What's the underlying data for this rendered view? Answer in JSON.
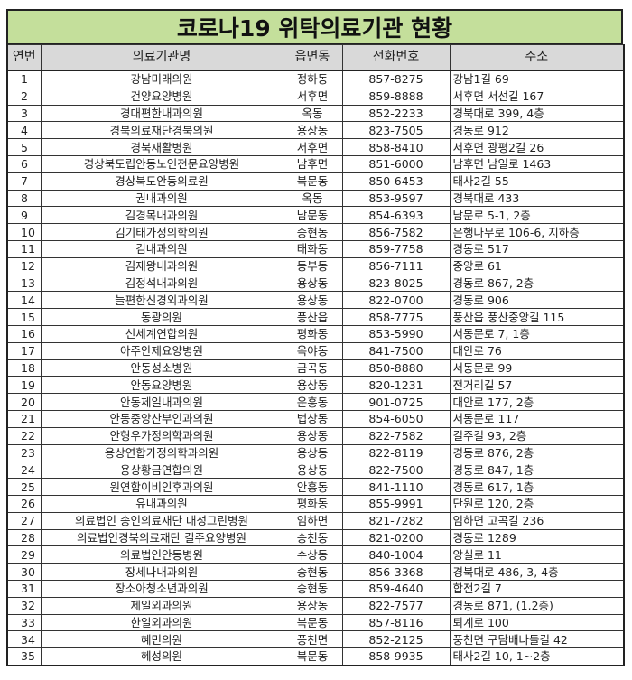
{
  "title": "코로나19 위탁의료기관 현황",
  "columns": [
    "연번",
    "의료기관명",
    "읍면동",
    "전화번호",
    "주소"
  ],
  "rows": [
    [
      "1",
      "강남미래의원",
      "정하동",
      "857-8275",
      "강남1길 69"
    ],
    [
      "2",
      "건양요양병원",
      "서후면",
      "859-8888",
      "서후면 서선길 167"
    ],
    [
      "3",
      "경대편한내과의원",
      "옥동",
      "852-2233",
      "경북대로 399, 4층"
    ],
    [
      "4",
      "경북의료재단경북의원",
      "용상동",
      "823-7505",
      "경동로 912"
    ],
    [
      "5",
      "경북재활병원",
      "서후면",
      "858-8410",
      "서후면 광평2길 26"
    ],
    [
      "6",
      "경상북도립안동노인전문요양병원",
      "남후면",
      "851-6000",
      "남후면 남일로 1463"
    ],
    [
      "7",
      "경상북도안동의료원",
      "북문동",
      "850-6453",
      "태사2길 55"
    ],
    [
      "8",
      "권내과의원",
      "옥동",
      "853-9597",
      "경북대로 433"
    ],
    [
      "9",
      "김경목내과의원",
      "남문동",
      "854-6393",
      "남문로 5-1, 2층"
    ],
    [
      "10",
      "김기태가정의학의원",
      "송현동",
      "856-7582",
      "은행나무로 106-6, 지하층"
    ],
    [
      "11",
      "김내과의원",
      "태화동",
      "859-7758",
      "경동로 517"
    ],
    [
      "12",
      "김재왕내과의원",
      "동부동",
      "856-7111",
      "중앙로 61"
    ],
    [
      "13",
      "김정석내과의원",
      "용상동",
      "823-8025",
      "경동로 867, 2층"
    ],
    [
      "14",
      "늘편한신경외과의원",
      "용상동",
      "822-0700",
      "경동로 906"
    ],
    [
      "15",
      "동광의원",
      "풍산읍",
      "858-7775",
      "풍산읍 풍산중앙길 115"
    ],
    [
      "16",
      "신세계연합의원",
      "평화동",
      "853-5990",
      "서동문로 7, 1층"
    ],
    [
      "17",
      "아주안제요양병원",
      "옥야동",
      "841-7500",
      "대안로 76"
    ],
    [
      "18",
      "안동성소병원",
      "금곡동",
      "850-8880",
      "서동문로 99"
    ],
    [
      "19",
      "안동요양병원",
      "용상동",
      "820-1231",
      "전거리길 57"
    ],
    [
      "20",
      "안동제일내과의원",
      "운흥동",
      "901-0725",
      "대안로 177, 2층"
    ],
    [
      "21",
      "안동중앙산부인과의원",
      "법상동",
      "854-6050",
      "서동문로 117"
    ],
    [
      "22",
      "안형우가정의학과의원",
      "용상동",
      "822-7582",
      "길주길 93, 2층"
    ],
    [
      "23",
      "용상연합가정의학과의원",
      "용상동",
      "822-8119",
      "경동로 876, 2층"
    ],
    [
      "24",
      "용상황금연합의원",
      "용상동",
      "822-7500",
      "경동로 847, 1층"
    ],
    [
      "25",
      "원연합이비인후과의원",
      "안흥동",
      "841-1110",
      "경동로 617, 1층"
    ],
    [
      "26",
      "유내과의원",
      "평화동",
      "855-9991",
      "단원로 120, 2층"
    ],
    [
      "27",
      "의료법인 송인의료재단 대성그린병원",
      "임하면",
      "821-7282",
      "임하면 고곡길 236"
    ],
    [
      "28",
      "의료법인경북의료재단 길주요양병원",
      "송천동",
      "821-0200",
      "경동로 1289"
    ],
    [
      "29",
      "의료법인안동병원",
      "수상동",
      "840-1004",
      "앙실로 11"
    ],
    [
      "30",
      "장세나내과의원",
      "송현동",
      "856-3368",
      "경북대로 486, 3, 4층"
    ],
    [
      "31",
      "장소아청소년과의원",
      "송현동",
      "859-4640",
      "합전2길 7"
    ],
    [
      "32",
      "제일외과의원",
      "용상동",
      "822-7577",
      "경동로 871, (1.2층)"
    ],
    [
      "33",
      "한일외과의원",
      "북문동",
      "857-8116",
      "퇴계로 100"
    ],
    [
      "34",
      "혜민의원",
      "풍천면",
      "852-2125",
      "풍천면 구담배나들길 42"
    ],
    [
      "35",
      "혜성의원",
      "북문동",
      "858-9935",
      "태사2길 10, 1~2층"
    ]
  ],
  "colors": {
    "title_bg": "#c4df9b",
    "header_bg": "#d9d9d9"
  }
}
